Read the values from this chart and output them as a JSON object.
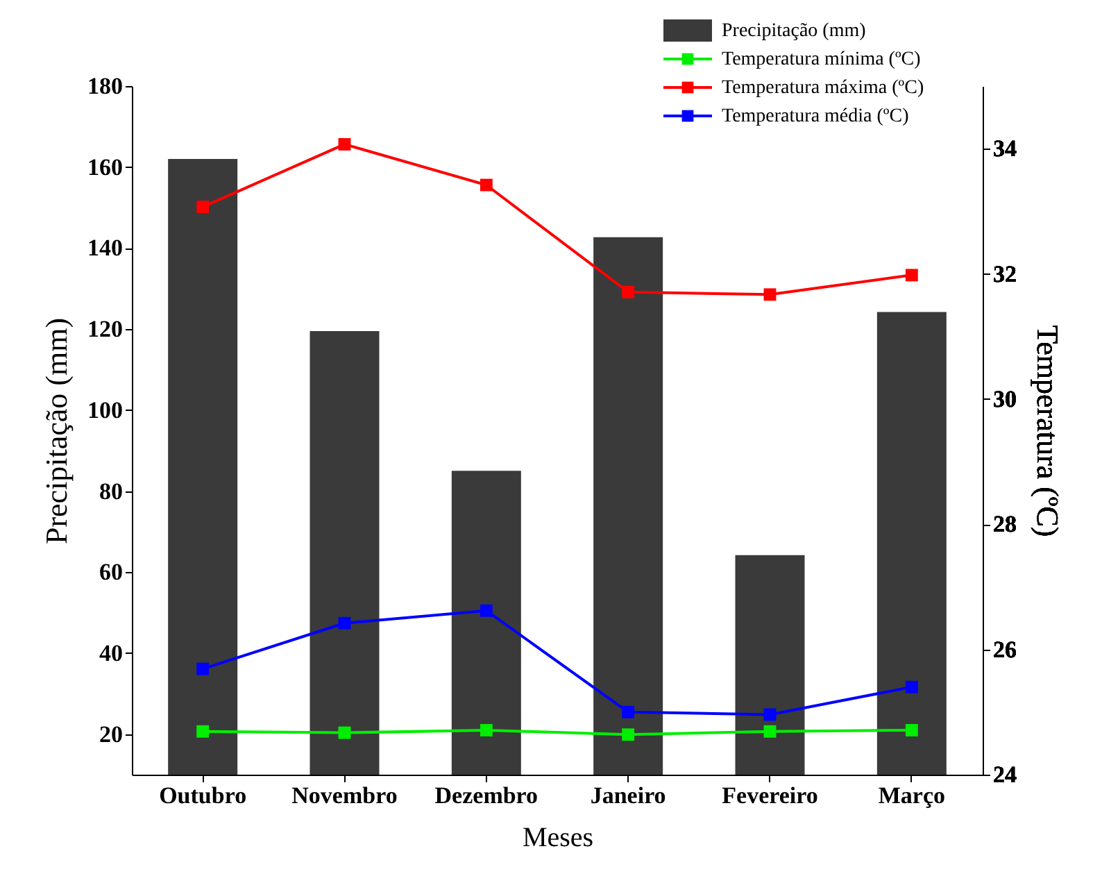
{
  "chart_data": {
    "type": "bar",
    "xlabel": "Meses",
    "ylabel": "Precipitação (mm)",
    "y2label": "Temperatura (ºC)",
    "categories": [
      "Outubro",
      "Novembro",
      "Dezembro",
      "Janeiro",
      "Fevereiro",
      "Março"
    ],
    "series": [
      {
        "name": "Precipitação (mm)",
        "color": "#3a3a3a",
        "values": [
          162,
          119.5,
          85,
          142.7,
          64.2,
          124.2
        ]
      },
      {
        "name": "Temperatura mínima (ºC)",
        "type": "line",
        "axis": "y2",
        "color": "#00ee00",
        "values": [
          24.69,
          24.67,
          24.71,
          24.64,
          24.69,
          24.71
        ]
      },
      {
        "name": "Temperatura máxima (ºC)",
        "type": "line",
        "axis": "y2",
        "color": "#ff0000",
        "values": [
          33.07,
          34.07,
          33.42,
          31.71,
          31.67,
          31.98
        ]
      },
      {
        "name": "Temperatura média (ºC)",
        "type": "line",
        "axis": "y2",
        "color": "#0000ff",
        "values": [
          25.69,
          26.42,
          26.62,
          25.0,
          24.96,
          25.4
        ]
      }
    ],
    "ylim": [
      10,
      180
    ],
    "yticks": [
      20,
      40,
      60,
      80,
      100,
      120,
      140,
      160,
      180
    ],
    "y2lim": [
      24,
      35
    ],
    "y2ticks": [
      24,
      26,
      28,
      30,
      32,
      34
    ],
    "marker": "square",
    "line_style": "solid",
    "grid": false,
    "legend": "top right"
  }
}
